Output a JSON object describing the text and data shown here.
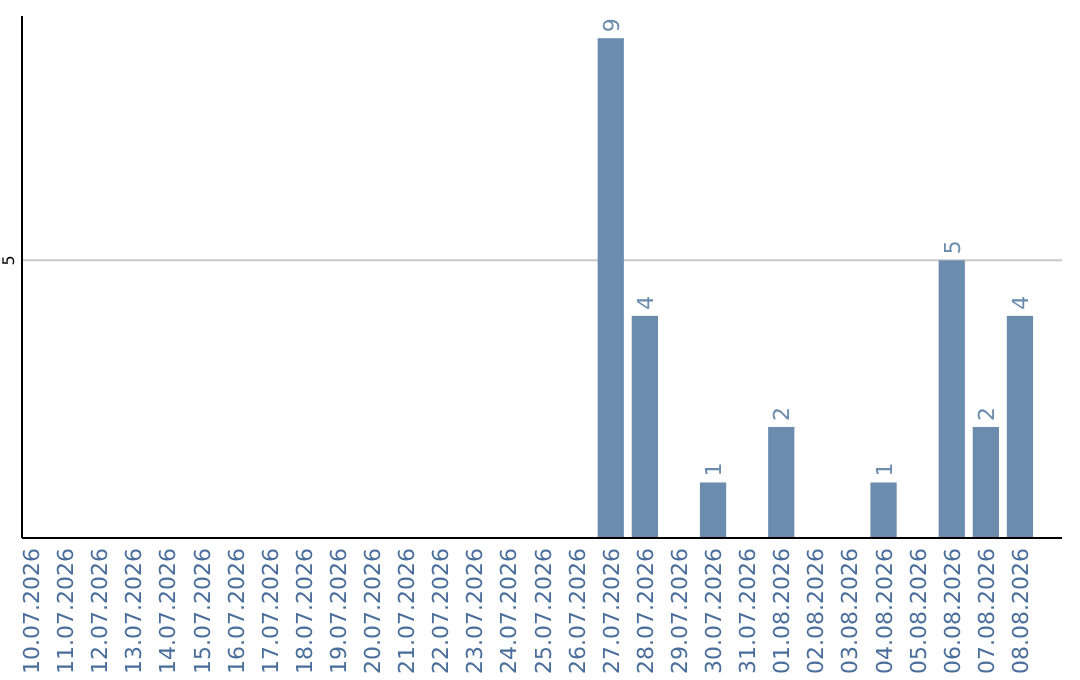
{
  "chart_data": {
    "type": "bar",
    "categories": [
      "10.07.2026",
      "11.07.2026",
      "12.07.2026",
      "13.07.2026",
      "14.07.2026",
      "15.07.2026",
      "16.07.2026",
      "17.07.2026",
      "18.07.2026",
      "19.07.2026",
      "20.07.2026",
      "21.07.2026",
      "22.07.2026",
      "23.07.2026",
      "24.07.2026",
      "25.07.2026",
      "26.07.2026",
      "27.07.2026",
      "28.07.2026",
      "29.07.2026",
      "30.07.2026",
      "31.07.2026",
      "01.08.2026",
      "02.08.2026",
      "03.08.2026",
      "04.08.2026",
      "05.08.2026",
      "06.08.2026",
      "07.08.2026",
      "08.08.2026"
    ],
    "values": [
      null,
      null,
      null,
      null,
      null,
      null,
      null,
      null,
      null,
      null,
      null,
      null,
      null,
      null,
      null,
      null,
      null,
      9,
      4,
      null,
      1,
      null,
      2,
      null,
      null,
      1,
      null,
      5,
      2,
      4
    ],
    "color": "#6b8cad",
    "ylim": [
      0,
      9.4
    ],
    "yticks": [
      {
        "value": 0,
        "label": null
      },
      5
    ],
    "grid": "y",
    "data_labels": true
  }
}
